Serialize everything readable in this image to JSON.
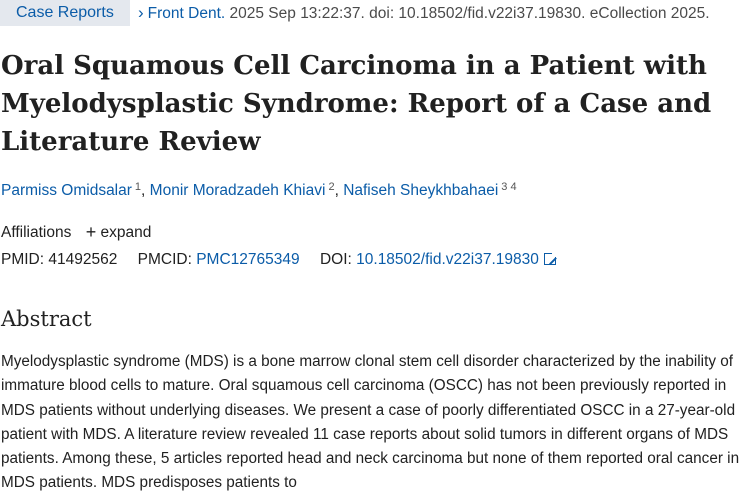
{
  "header": {
    "badge": "Case Reports",
    "journal": "Front Dent.",
    "citation_rest": "2025 Sep 13:22:37. doi: 10.18502/fid.v22i37.19830. eCollection 2025."
  },
  "article": {
    "title": "Oral Squamous Cell Carcinoma in a Patient with Myelodysplastic Syndrome: Report of a Case and Literature Review",
    "authors": [
      {
        "name": "Parmiss Omidsalar",
        "sup": "1"
      },
      {
        "name": "Monir Moradzadeh Khiavi",
        "sup": "2"
      },
      {
        "name": "Nafiseh Sheykhbahaei",
        "sup": "3 4"
      }
    ],
    "affiliations_label": "Affiliations",
    "expand_label": "expand",
    "pmid_label": "PMID:",
    "pmid": "41492562",
    "pmcid_label": "PMCID:",
    "pmcid": "PMC12765349",
    "doi_label": "DOI:",
    "doi": "10.18502/fid.v22i37.19830"
  },
  "abstract": {
    "heading": "Abstract",
    "text": "Myelodysplastic syndrome (MDS) is a bone marrow clonal stem cell disorder characterized by the inability of immature blood cells to mature. Oral squamous cell carcinoma (OSCC) has not been previously reported in MDS patients without underlying diseases. We present a case of poorly differentiated OSCC in a 27-year-old patient with MDS. A literature review revealed 11 case reports about solid tumors in different organs of MDS patients. Among these, 5 articles reported head and neck carcinoma but none of them reported oral cancer in MDS patients. MDS predisposes patients to"
  }
}
